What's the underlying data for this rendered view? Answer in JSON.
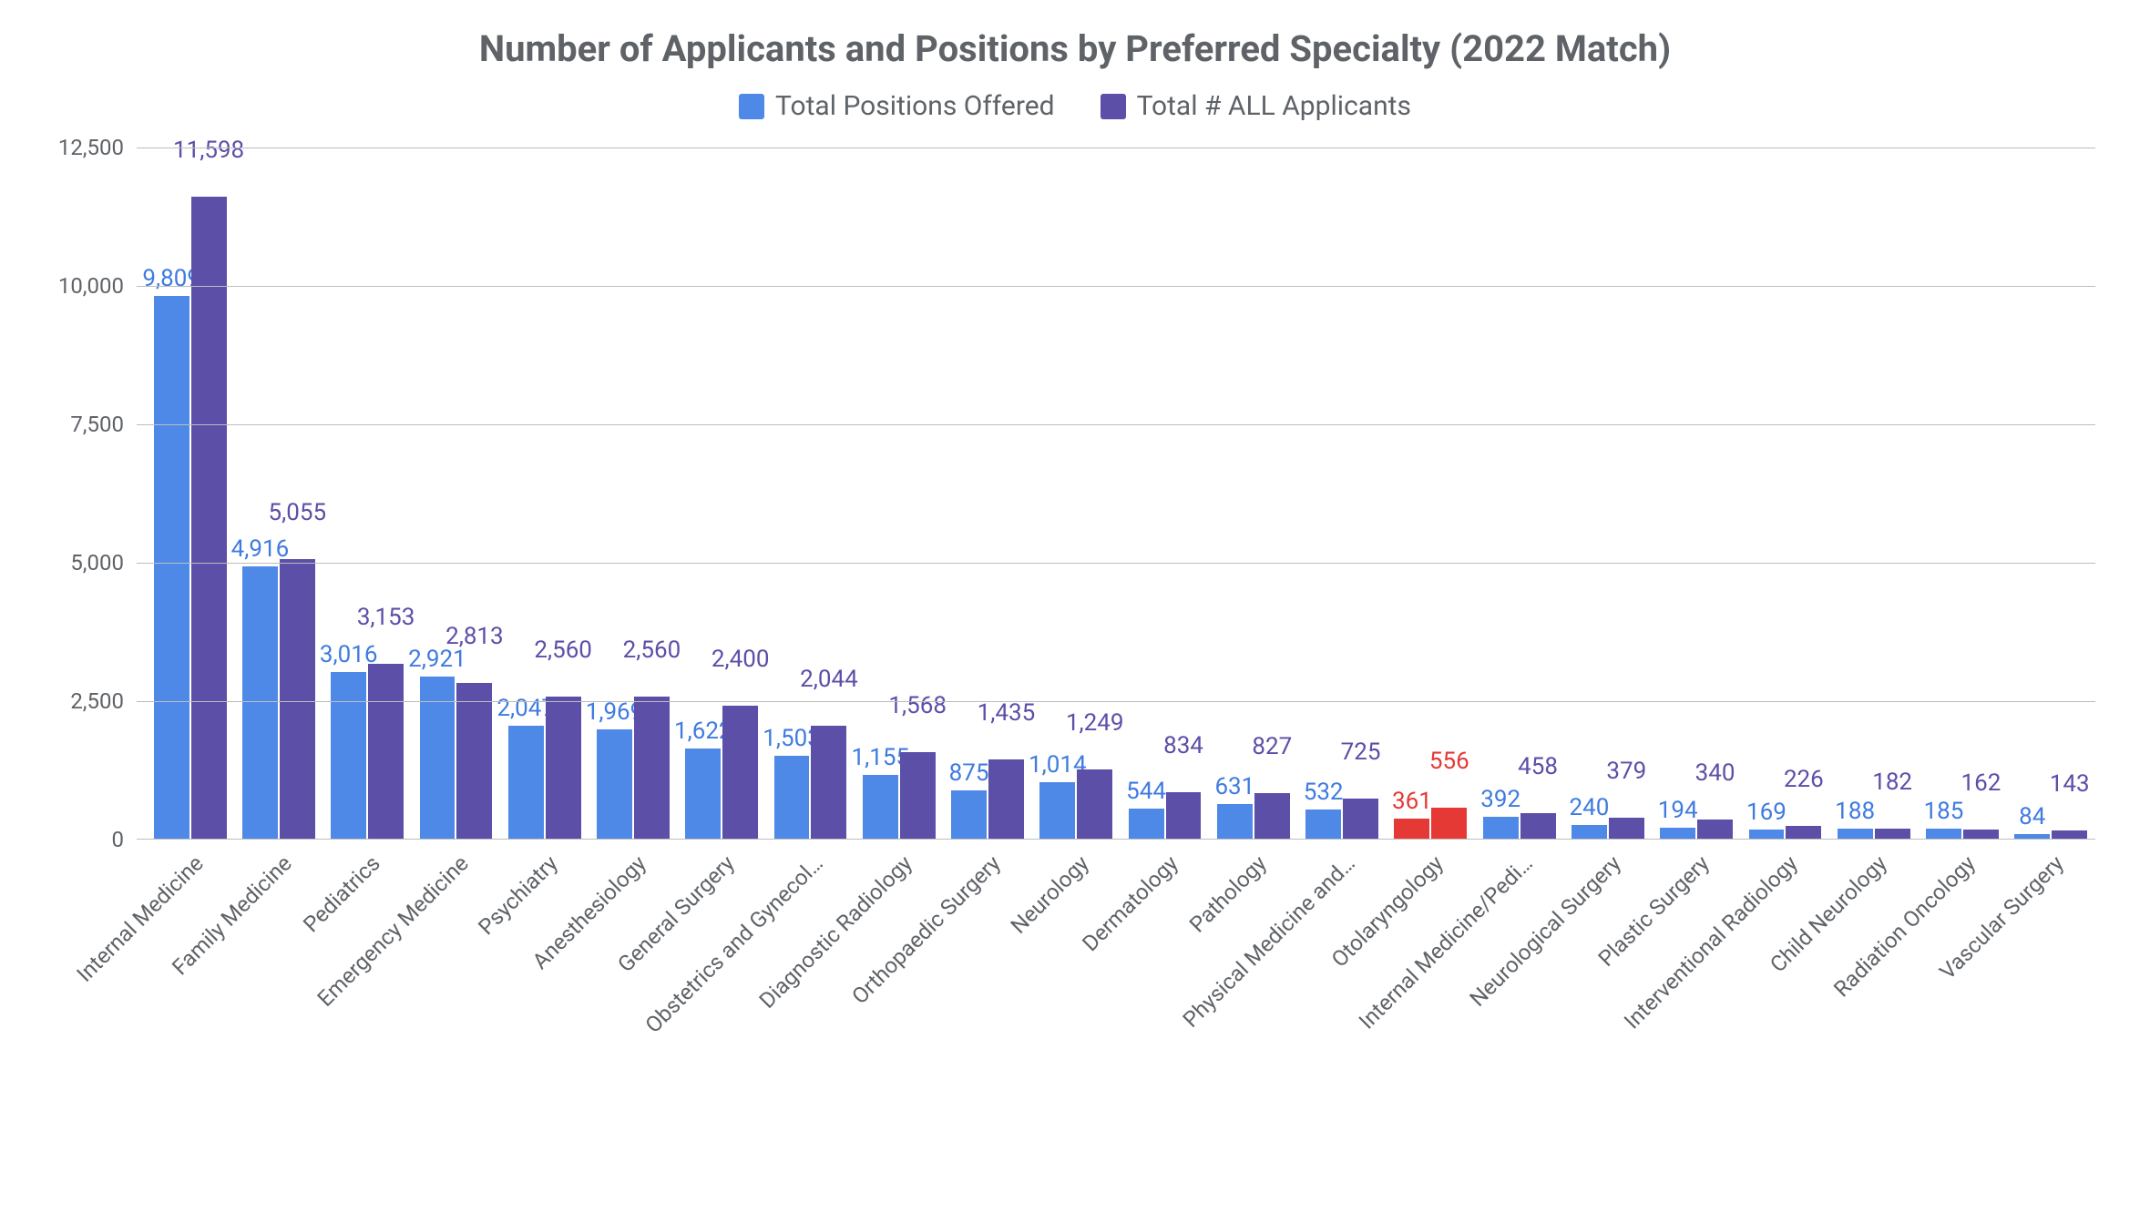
{
  "chart": {
    "type": "bar",
    "title": "Number of Applicants and Positions by Preferred Specialty (2022 Match)",
    "title_fontsize": 40,
    "title_color": "#5f6368",
    "legend": {
      "items": [
        {
          "label": "Total Positions Offered",
          "color": "#4f89e8"
        },
        {
          "label": "Total # ALL Applicants",
          "color": "#5b4fa8"
        }
      ],
      "fontsize": 30
    },
    "background_color": "#ffffff",
    "grid_color": "#bdbdbd",
    "axis_color": "#bdbdbd",
    "tick_font_color": "#5f6368",
    "tick_fontsize": 24,
    "xlabel_fontsize": 24,
    "data_label_fontsize": 26,
    "highlight_color": "#e53935",
    "highlight_index": 14,
    "ylim": [
      0,
      12500
    ],
    "ytick_step": 2500,
    "yticks": [
      "0",
      "2,500",
      "5,000",
      "7,500",
      "10,000",
      "12,500"
    ],
    "categories": [
      "Internal Medicine",
      "Family Medicine",
      "Pediatrics",
      "Emergency Medicine",
      "Psychiatry",
      "Anesthesiology",
      "General Surgery",
      "Obstetrics and Gynecol…",
      "Diagnostic Radiology",
      "Orthopaedic Surgery",
      "Neurology",
      "Dermatology",
      "Pathology",
      "Physical Medicine and…",
      "Otolaryngology",
      "Internal Medicine/Pedi…",
      "Neurological Surgery",
      "Plastic Surgery",
      "Interventional Radiology",
      "Child Neurology",
      "Radiation Oncology",
      "Vascular Surgery"
    ],
    "series": [
      {
        "name": "Total Positions Offered",
        "color": "#4f89e8",
        "label_color": "#3f7be0",
        "values": [
          9809,
          4916,
          3016,
          2921,
          2047,
          1969,
          1622,
          1503,
          1155,
          875,
          1014,
          544,
          631,
          532,
          361,
          392,
          240,
          194,
          169,
          188,
          185,
          84
        ],
        "labels": [
          "9,809",
          "4,916",
          "3,016",
          "2,921",
          "2,047",
          "1,969",
          "1,622",
          "1,503",
          "1,155",
          "875",
          "1,014",
          "544",
          "631",
          "532",
          "361",
          "392",
          "240",
          "194",
          "169",
          "188",
          "185",
          "84"
        ]
      },
      {
        "name": "Total # ALL Applicants",
        "color": "#5b4fa8",
        "label_color": "#5b4fa8",
        "values": [
          11598,
          5055,
          3153,
          2813,
          2560,
          2560,
          2400,
          2044,
          1568,
          1435,
          1249,
          834,
          827,
          725,
          556,
          458,
          379,
          340,
          226,
          182,
          162,
          143
        ],
        "labels": [
          "11,598",
          "5,055",
          "3,153",
          "2,813",
          "2,560",
          "2,560",
          "2,400",
          "2,044",
          "1,568",
          "1,435",
          "1,249",
          "834",
          "827",
          "725",
          "556",
          "458",
          "379",
          "340",
          "226",
          "182",
          "162",
          "143"
        ]
      }
    ]
  }
}
